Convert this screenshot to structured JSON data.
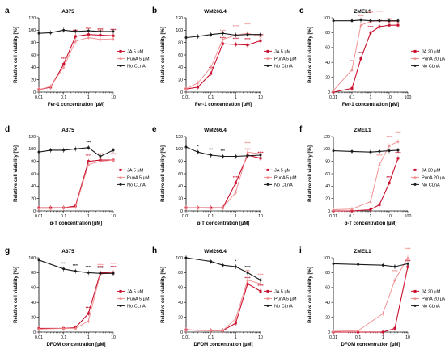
{
  "colors": {
    "ja": "#c8102e",
    "puna": "#f08a8c",
    "no": "#1a1a1a"
  },
  "chart_data": [
    {
      "letter": "a",
      "title": "A375",
      "type": "line",
      "xlabel": "Fer-1 concentration [µM]",
      "ylabel": "Relative cell viability [%]",
      "xlim": [
        0.01,
        10
      ],
      "xticks": [
        "0.01",
        "0.1",
        "1",
        "10"
      ],
      "ylim": [
        0,
        120
      ],
      "yticks": [
        "0",
        "20",
        "40",
        "60",
        "80",
        "100",
        "120"
      ],
      "series": [
        {
          "key": "ja",
          "name": "JA 5 µM",
          "x": [
            0.01,
            0.03,
            0.1,
            0.3,
            1,
            3,
            10
          ],
          "y": [
            4,
            8,
            45,
            90,
            93,
            92,
            91
          ],
          "stars": [
            {
              "i": 2,
              "t": "***"
            },
            {
              "i": 3,
              "t": "****"
            },
            {
              "i": 4,
              "t": "****"
            },
            {
              "i": 5,
              "t": "****"
            },
            {
              "i": 6,
              "t": "****"
            }
          ]
        },
        {
          "key": "puna",
          "name": "PunA 5 µM",
          "x": [
            0.01,
            0.03,
            0.1,
            0.3,
            1,
            3,
            10
          ],
          "y": [
            4,
            9,
            40,
            82,
            88,
            85,
            86
          ],
          "stars": [
            {
              "i": 3,
              "t": "****"
            },
            {
              "i": 4,
              "t": "****"
            },
            {
              "i": 5,
              "t": "****"
            }
          ]
        },
        {
          "key": "no",
          "name": "No CLnA",
          "x": [
            0.01,
            0.03,
            0.1,
            0.3,
            1,
            3,
            10
          ],
          "y": [
            95,
            96,
            100,
            98,
            99,
            98,
            98
          ],
          "stars": []
        }
      ]
    },
    {
      "letter": "b",
      "title": "WM266.4",
      "type": "line",
      "xlabel": "Fer-1 concentration [µM]",
      "ylabel": "Relative cell viability [%]",
      "xlim": [
        0.01,
        10
      ],
      "xticks": [
        "0.01",
        "0.1",
        "1",
        "10"
      ],
      "ylim": [
        0,
        120
      ],
      "yticks": [
        "0",
        "20",
        "40",
        "60",
        "80",
        "100",
        "120"
      ],
      "series": [
        {
          "key": "ja",
          "name": "JA 5 µM",
          "x": [
            0.01,
            0.03,
            0.1,
            0.3,
            1,
            3,
            10
          ],
          "y": [
            5,
            8,
            30,
            78,
            77,
            76,
            83
          ],
          "stars": [
            {
              "i": 2,
              "t": "***"
            },
            {
              "i": 3,
              "t": "****"
            },
            {
              "i": 4,
              "t": "****"
            },
            {
              "i": 5,
              "t": "****"
            },
            {
              "i": 6,
              "t": "****"
            }
          ]
        },
        {
          "key": "puna",
          "name": "PunA 5 µM",
          "x": [
            0.01,
            0.03,
            0.1,
            0.3,
            1,
            3,
            10
          ],
          "y": [
            5,
            15,
            40,
            85,
            92,
            95,
            90
          ],
          "stars": [
            {
              "i": 3,
              "t": "****"
            },
            {
              "i": 4,
              "t": "****"
            },
            {
              "i": 5,
              "t": "****"
            }
          ]
        },
        {
          "key": "no",
          "name": "No CLnA",
          "x": [
            0.01,
            0.03,
            0.1,
            0.3,
            1,
            3,
            10
          ],
          "y": [
            88,
            90,
            93,
            95,
            92,
            93,
            93
          ],
          "stars": []
        }
      ]
    },
    {
      "letter": "c",
      "title": "ZMEL1",
      "type": "line",
      "xlabel": "Fer-1 concentration [µM]",
      "ylabel": "Relative cell viability [%]",
      "xlim": [
        0.01,
        100
      ],
      "xticks": [
        "0.01",
        "0.1",
        "1",
        "10",
        "100"
      ],
      "ylim": [
        0,
        100
      ],
      "yticks": [
        "0",
        "20",
        "40",
        "60",
        "80",
        "100"
      ],
      "series": [
        {
          "key": "ja",
          "name": "JA 20 µM",
          "x": [
            0.01,
            0.1,
            0.3,
            1,
            3,
            10,
            30
          ],
          "y": [
            0,
            5,
            45,
            80,
            88,
            90,
            90
          ],
          "stars": [
            {
              "i": 2,
              "t": "***"
            },
            {
              "i": 3,
              "t": "****"
            },
            {
              "i": 4,
              "t": "****"
            },
            {
              "i": 5,
              "t": "****"
            }
          ]
        },
        {
          "key": "puna",
          "name": "PunA 20 µM",
          "x": [
            0.01,
            0.1,
            0.3,
            1,
            3,
            10,
            30
          ],
          "y": [
            2,
            30,
            90,
            95,
            96,
            95,
            95
          ],
          "stars": [
            {
              "i": 1,
              "t": "***"
            },
            {
              "i": 2,
              "t": "****"
            },
            {
              "i": 3,
              "t": "****"
            },
            {
              "i": 4,
              "t": "****"
            }
          ]
        },
        {
          "key": "no",
          "name": "No CLnA",
          "x": [
            0.01,
            0.1,
            0.3,
            1,
            3,
            10,
            30
          ],
          "y": [
            96,
            96,
            97,
            96,
            96,
            96,
            96
          ],
          "stars": []
        }
      ]
    },
    {
      "letter": "d",
      "title": "A375",
      "type": "line",
      "xlabel": "α-T concentration [µM]",
      "ylabel": "Relative cell viability [%]",
      "xlim": [
        0.01,
        10
      ],
      "xticks": [
        "0.01",
        "0.1",
        "1",
        "10"
      ],
      "ylim": [
        0,
        120
      ],
      "yticks": [
        "0",
        "20",
        "40",
        "60",
        "80",
        "100",
        "120"
      ],
      "series": [
        {
          "key": "ja",
          "name": "JA 5 µM",
          "x": [
            0.01,
            0.03,
            0.1,
            0.3,
            1,
            3,
            10
          ],
          "y": [
            5,
            5,
            5,
            8,
            80,
            82,
            82
          ],
          "stars": [
            {
              "i": 4,
              "t": "****"
            },
            {
              "i": 5,
              "t": "****"
            },
            {
              "i": 6,
              "t": "****"
            }
          ]
        },
        {
          "key": "puna",
          "name": "PunA 5 µM",
          "x": [
            0.01,
            0.03,
            0.1,
            0.3,
            1,
            3,
            10
          ],
          "y": [
            4,
            4,
            5,
            6,
            75,
            80,
            82
          ],
          "stars": [
            {
              "i": 4,
              "t": "****"
            }
          ]
        },
        {
          "key": "no",
          "name": "No CLnA",
          "x": [
            0.01,
            0.03,
            0.1,
            0.3,
            1,
            3,
            10
          ],
          "y": [
            95,
            98,
            98,
            100,
            102,
            88,
            98
          ],
          "stars": [
            {
              "i": 4,
              "t": "***"
            }
          ]
        }
      ]
    },
    {
      "letter": "e",
      "title": "WM266.4",
      "type": "line",
      "xlabel": "α-T concentration [µM]",
      "ylabel": "Relative cell viability [%]",
      "xlim": [
        0.01,
        10
      ],
      "xticks": [
        "0.01",
        "0.1",
        "1",
        "10"
      ],
      "ylim": [
        0,
        120
      ],
      "yticks": [
        "0",
        "20",
        "40",
        "60",
        "80",
        "100",
        "120"
      ],
      "series": [
        {
          "key": "ja",
          "name": "JA 5 µM",
          "x": [
            0.01,
            0.03,
            0.1,
            0.3,
            1,
            3,
            10
          ],
          "y": [
            5,
            5,
            5,
            5,
            45,
            90,
            85
          ],
          "stars": [
            {
              "i": 4,
              "t": "****"
            },
            {
              "i": 5,
              "t": "****"
            },
            {
              "i": 6,
              "t": "****"
            }
          ]
        },
        {
          "key": "puna",
          "name": "PunA 5 µM",
          "x": [
            0.01,
            0.03,
            0.1,
            0.3,
            1,
            3,
            10
          ],
          "y": [
            5,
            5,
            4,
            5,
            30,
            95,
            92
          ],
          "stars": [
            {
              "i": 5,
              "t": "****"
            }
          ]
        },
        {
          "key": "no",
          "name": "No CLnA",
          "x": [
            0.01,
            0.03,
            0.1,
            0.3,
            1,
            3,
            10
          ],
          "y": [
            103,
            95,
            90,
            88,
            88,
            89,
            90
          ],
          "stars": [
            {
              "i": 1,
              "t": "*"
            },
            {
              "i": 2,
              "t": "***"
            },
            {
              "i": 3,
              "t": "***"
            }
          ]
        }
      ]
    },
    {
      "letter": "f",
      "title": "ZMEL1",
      "type": "line",
      "xlabel": "α-T concentration [µM]",
      "ylabel": "Relative cell viability [%]",
      "xlim": [
        0.01,
        100
      ],
      "xticks": [
        "0.01",
        "0.1",
        "1",
        "10",
        "100"
      ],
      "ylim": [
        0,
        120
      ],
      "yticks": [
        "0",
        "20",
        "40",
        "60",
        "80",
        "100",
        "120"
      ],
      "series": [
        {
          "key": "ja",
          "name": "JA 20 µM",
          "x": [
            0.01,
            0.1,
            1,
            3,
            10,
            30
          ],
          "y": [
            0,
            0,
            2,
            10,
            45,
            85
          ],
          "stars": [
            {
              "i": 4,
              "t": "****"
            },
            {
              "i": 5,
              "t": "****"
            }
          ]
        },
        {
          "key": "puna",
          "name": "PunA 20 µM",
          "x": [
            0.01,
            0.1,
            1,
            3,
            10,
            30
          ],
          "y": [
            2,
            3,
            15,
            75,
            105,
            112
          ],
          "stars": [
            {
              "i": 2,
              "t": "*"
            },
            {
              "i": 3,
              "t": "****"
            },
            {
              "i": 4,
              "t": "****"
            },
            {
              "i": 5,
              "t": "****"
            }
          ]
        },
        {
          "key": "no",
          "name": "No CLnA",
          "x": [
            0.01,
            0.1,
            1,
            3,
            10,
            30
          ],
          "y": [
            97,
            96,
            95,
            96,
            97,
            98
          ],
          "stars": []
        }
      ]
    },
    {
      "letter": "g",
      "title": "A375",
      "type": "line",
      "xlabel": "DFOM concentration [µM]",
      "ylabel": "Relative cell viability [%]",
      "xlim": [
        0.01,
        10
      ],
      "xticks": [
        "0.01",
        "0.1",
        "1",
        "10"
      ],
      "ylim": [
        0,
        100
      ],
      "yticks": [
        "0",
        "20",
        "40",
        "60",
        "80",
        "100"
      ],
      "series": [
        {
          "key": "ja",
          "name": "JA 5 µM",
          "x": [
            0.01,
            0.1,
            0.3,
            1,
            3,
            10
          ],
          "y": [
            5,
            5,
            6,
            25,
            80,
            80
          ],
          "stars": [
            {
              "i": 3,
              "t": "****"
            },
            {
              "i": 4,
              "t": "****"
            },
            {
              "i": 5,
              "t": "****"
            }
          ]
        },
        {
          "key": "puna",
          "name": "PunA 5 µM",
          "x": [
            0.01,
            0.1,
            0.3,
            1,
            3,
            10
          ],
          "y": [
            4,
            5,
            5,
            15,
            78,
            80
          ],
          "stars": [
            {
              "i": 4,
              "t": "****"
            },
            {
              "i": 5,
              "t": "****"
            }
          ]
        },
        {
          "key": "no",
          "name": "No CLnA",
          "x": [
            0.01,
            0.1,
            0.3,
            1,
            3,
            10
          ],
          "y": [
            97,
            85,
            82,
            80,
            79,
            79
          ],
          "stars": [
            {
              "i": 1,
              "t": "****"
            },
            {
              "i": 2,
              "t": "****"
            },
            {
              "i": 3,
              "t": "****"
            },
            {
              "i": 4,
              "t": "****"
            }
          ]
        }
      ]
    },
    {
      "letter": "h",
      "title": "WM266.4",
      "type": "line",
      "xlabel": "DFOM concentration [µM]",
      "ylabel": "Relative cell viability [%]",
      "xlim": [
        0.01,
        10
      ],
      "xticks": [
        "0.01",
        "0.1",
        "1",
        "10"
      ],
      "ylim": [
        0,
        100
      ],
      "yticks": [
        "0",
        "20",
        "40",
        "60",
        "80",
        "100"
      ],
      "series": [
        {
          "key": "ja",
          "name": "JA 5 µM",
          "x": [
            0.01,
            0.1,
            0.3,
            1,
            3,
            10
          ],
          "y": [
            3,
            2,
            2,
            12,
            65,
            55
          ],
          "stars": [
            {
              "i": 4,
              "t": "****"
            },
            {
              "i": 5,
              "t": "****"
            }
          ]
        },
        {
          "key": "puna",
          "name": "PunA 5 µM",
          "x": [
            0.01,
            0.1,
            0.3,
            1,
            3,
            10
          ],
          "y": [
            3,
            2,
            2,
            18,
            70,
            65
          ],
          "stars": [
            {
              "i": 4,
              "t": "***"
            },
            {
              "i": 5,
              "t": "****"
            }
          ]
        },
        {
          "key": "no",
          "name": "No CLnA",
          "x": [
            0.01,
            0.1,
            0.3,
            1,
            3,
            10
          ],
          "y": [
            100,
            95,
            90,
            88,
            80,
            70
          ],
          "stars": [
            {
              "i": 3,
              "t": "*"
            },
            {
              "i": 4,
              "t": "****"
            }
          ]
        }
      ]
    },
    {
      "letter": "i",
      "title": "ZMEL1",
      "type": "line",
      "xlabel": "DFOM concentration [µM]",
      "ylabel": "Relative cell viability [%]",
      "xlim": [
        0.01,
        10
      ],
      "xticks": [
        "0.01",
        "0.1",
        "1",
        "10"
      ],
      "ylim": [
        0,
        100
      ],
      "yticks": [
        "0",
        "20",
        "40",
        "60",
        "80",
        "100"
      ],
      "series": [
        {
          "key": "ja",
          "name": "JA 20 µM",
          "x": [
            0.01,
            0.1,
            1,
            3,
            10
          ],
          "y": [
            0,
            0,
            0,
            5,
            88
          ],
          "stars": [
            {
              "i": 4,
              "t": "****"
            }
          ]
        },
        {
          "key": "puna",
          "name": "PunA 20 µM",
          "x": [
            0.01,
            0.1,
            1,
            3,
            10
          ],
          "y": [
            1,
            2,
            25,
            70,
            100
          ],
          "stars": [
            {
              "i": 3,
              "t": "****"
            },
            {
              "i": 4,
              "t": "****"
            }
          ]
        },
        {
          "key": "no",
          "name": "No CLnA",
          "x": [
            0.01,
            0.1,
            1,
            3,
            10
          ],
          "y": [
            92,
            91,
            90,
            88,
            92
          ],
          "stars": []
        }
      ]
    }
  ]
}
